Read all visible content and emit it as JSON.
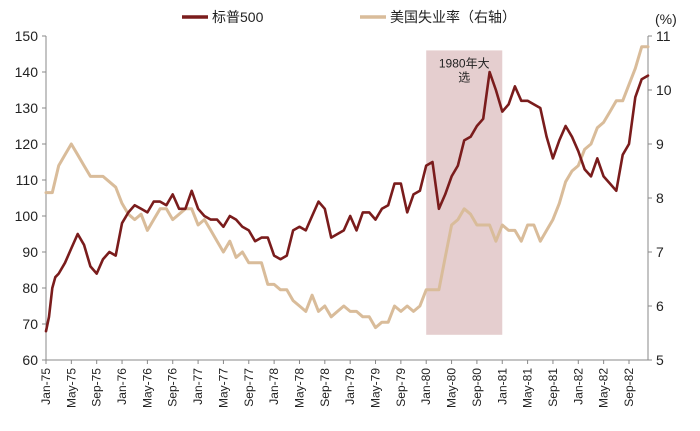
{
  "chart_data": {
    "type": "line",
    "title": "",
    "legend": {
      "placement": "top-center",
      "items": [
        {
          "name": "标普500",
          "color": "#7a1c1c"
        },
        {
          "name": "美国失业率（右轴）",
          "color": "#d9bc9a"
        }
      ]
    },
    "unit_right": "(%)",
    "left_axis": {
      "min": 60,
      "max": 150,
      "ticks": [
        60,
        70,
        80,
        90,
        100,
        110,
        120,
        130,
        140,
        150
      ]
    },
    "right_axis": {
      "min": 5,
      "max": 11,
      "ticks": [
        5,
        6,
        7,
        8,
        9,
        10,
        11
      ]
    },
    "x_axis": {
      "start": "1975-01",
      "end": "1982-12",
      "tick_labels": [
        "Jan-75",
        "May-75",
        "Sep-75",
        "Jan-76",
        "May-76",
        "Sep-76",
        "Jan-77",
        "May-77",
        "Sep-77",
        "Jan-78",
        "May-78",
        "Sep-78",
        "Jan-79",
        "May-79",
        "Sep-79",
        "Jan-80",
        "May-80",
        "Sep-80",
        "Jan-81",
        "May-81",
        "Sep-81",
        "Jan-82",
        "May-82",
        "Sep-82"
      ]
    },
    "annotation": {
      "text_line1": "1980年大",
      "text_line2": "选",
      "from": "1980-01",
      "to": "1981-01",
      "color": "#cfa5a8"
    },
    "series": [
      {
        "name": "标普500",
        "axis": "left",
        "color": "#7a1c1c",
        "points": [
          [
            "1975-01",
            68
          ],
          [
            "1975-01-15",
            72
          ],
          [
            "1975-02",
            80
          ],
          [
            "1975-02-15",
            83
          ],
          [
            "1975-03",
            84
          ],
          [
            "1975-04",
            87
          ],
          [
            "1975-05",
            91
          ],
          [
            "1975-06",
            95
          ],
          [
            "1975-07",
            92
          ],
          [
            "1975-08",
            86
          ],
          [
            "1975-09",
            84
          ],
          [
            "1975-10",
            88
          ],
          [
            "1975-11",
            90
          ],
          [
            "1975-12",
            89
          ],
          [
            "1976-01",
            98
          ],
          [
            "1976-02",
            101
          ],
          [
            "1976-03",
            103
          ],
          [
            "1976-04",
            102
          ],
          [
            "1976-05",
            101
          ],
          [
            "1976-06",
            104
          ],
          [
            "1976-07",
            104
          ],
          [
            "1976-08",
            103
          ],
          [
            "1976-09",
            106
          ],
          [
            "1976-10",
            102
          ],
          [
            "1976-11",
            102
          ],
          [
            "1976-12",
            107
          ],
          [
            "1977-01",
            102
          ],
          [
            "1977-02",
            100
          ],
          [
            "1977-03",
            99
          ],
          [
            "1977-04",
            99
          ],
          [
            "1977-05",
            97
          ],
          [
            "1977-06",
            100
          ],
          [
            "1977-07",
            99
          ],
          [
            "1977-08",
            97
          ],
          [
            "1977-09",
            96
          ],
          [
            "1977-10",
            93
          ],
          [
            "1977-11",
            94
          ],
          [
            "1977-12",
            94
          ],
          [
            "1978-01",
            89
          ],
          [
            "1978-02",
            88
          ],
          [
            "1978-03",
            89
          ],
          [
            "1978-04",
            96
          ],
          [
            "1978-05",
            97
          ],
          [
            "1978-06",
            96
          ],
          [
            "1978-07",
            100
          ],
          [
            "1978-08",
            104
          ],
          [
            "1978-09",
            102
          ],
          [
            "1978-10",
            94
          ],
          [
            "1978-11",
            95
          ],
          [
            "1978-12",
            96
          ],
          [
            "1979-01",
            100
          ],
          [
            "1979-02",
            96
          ],
          [
            "1979-03",
            101
          ],
          [
            "1979-04",
            101
          ],
          [
            "1979-05",
            99
          ],
          [
            "1979-06",
            102
          ],
          [
            "1979-07",
            103
          ],
          [
            "1979-08",
            109
          ],
          [
            "1979-09",
            109
          ],
          [
            "1979-10",
            101
          ],
          [
            "1979-11",
            106
          ],
          [
            "1979-12",
            107
          ],
          [
            "1980-01",
            114
          ],
          [
            "1980-02",
            115
          ],
          [
            "1980-03",
            102
          ],
          [
            "1980-04",
            106
          ],
          [
            "1980-05",
            111
          ],
          [
            "1980-06",
            114
          ],
          [
            "1980-07",
            121
          ],
          [
            "1980-08",
            122
          ],
          [
            "1980-09",
            125
          ],
          [
            "1980-10",
            127
          ],
          [
            "1980-11",
            140
          ],
          [
            "1980-12",
            135
          ],
          [
            "1981-01",
            129
          ],
          [
            "1981-02",
            131
          ],
          [
            "1981-03",
            136
          ],
          [
            "1981-04",
            132
          ],
          [
            "1981-05",
            132
          ],
          [
            "1981-06",
            131
          ],
          [
            "1981-07",
            130
          ],
          [
            "1981-08",
            122
          ],
          [
            "1981-09",
            116
          ],
          [
            "1981-10",
            121
          ],
          [
            "1981-11",
            125
          ],
          [
            "1981-12",
            122
          ],
          [
            "1982-01",
            118
          ],
          [
            "1982-02",
            113
          ],
          [
            "1982-03",
            111
          ],
          [
            "1982-04",
            116
          ],
          [
            "1982-05",
            111
          ],
          [
            "1982-06",
            109
          ],
          [
            "1982-07",
            107
          ],
          [
            "1982-08",
            117
          ],
          [
            "1982-09",
            120
          ],
          [
            "1982-10",
            133
          ],
          [
            "1982-11",
            138
          ],
          [
            "1982-12",
            139
          ]
        ]
      },
      {
        "name": "美国失业率（右轴）",
        "axis": "right",
        "color": "#d9bc9a",
        "points": [
          [
            "1975-01",
            8.1
          ],
          [
            "1975-02",
            8.1
          ],
          [
            "1975-03",
            8.6
          ],
          [
            "1975-04",
            8.8
          ],
          [
            "1975-05",
            9.0
          ],
          [
            "1975-06",
            8.8
          ],
          [
            "1975-07",
            8.6
          ],
          [
            "1975-08",
            8.4
          ],
          [
            "1975-09",
            8.4
          ],
          [
            "1975-10",
            8.4
          ],
          [
            "1975-11",
            8.3
          ],
          [
            "1975-12",
            8.2
          ],
          [
            "1976-01",
            7.9
          ],
          [
            "1976-02",
            7.7
          ],
          [
            "1976-03",
            7.6
          ],
          [
            "1976-04",
            7.7
          ],
          [
            "1976-05",
            7.4
          ],
          [
            "1976-06",
            7.6
          ],
          [
            "1976-07",
            7.8
          ],
          [
            "1976-08",
            7.8
          ],
          [
            "1976-09",
            7.6
          ],
          [
            "1976-10",
            7.7
          ],
          [
            "1976-11",
            7.8
          ],
          [
            "1976-12",
            7.8
          ],
          [
            "1977-01",
            7.5
          ],
          [
            "1977-02",
            7.6
          ],
          [
            "1977-03",
            7.4
          ],
          [
            "1977-04",
            7.2
          ],
          [
            "1977-05",
            7.0
          ],
          [
            "1977-06",
            7.2
          ],
          [
            "1977-07",
            6.9
          ],
          [
            "1977-08",
            7.0
          ],
          [
            "1977-09",
            6.8
          ],
          [
            "1977-10",
            6.8
          ],
          [
            "1977-11",
            6.8
          ],
          [
            "1977-12",
            6.4
          ],
          [
            "1978-01",
            6.4
          ],
          [
            "1978-02",
            6.3
          ],
          [
            "1978-03",
            6.3
          ],
          [
            "1978-04",
            6.1
          ],
          [
            "1978-05",
            6.0
          ],
          [
            "1978-06",
            5.9
          ],
          [
            "1978-07",
            6.2
          ],
          [
            "1978-08",
            5.9
          ],
          [
            "1978-09",
            6.0
          ],
          [
            "1978-10",
            5.8
          ],
          [
            "1978-11",
            5.9
          ],
          [
            "1978-12",
            6.0
          ],
          [
            "1979-01",
            5.9
          ],
          [
            "1979-02",
            5.9
          ],
          [
            "1979-03",
            5.8
          ],
          [
            "1979-04",
            5.8
          ],
          [
            "1979-05",
            5.6
          ],
          [
            "1979-06",
            5.7
          ],
          [
            "1979-07",
            5.7
          ],
          [
            "1979-08",
            6.0
          ],
          [
            "1979-09",
            5.9
          ],
          [
            "1979-10",
            6.0
          ],
          [
            "1979-11",
            5.9
          ],
          [
            "1979-12",
            6.0
          ],
          [
            "1980-01",
            6.3
          ],
          [
            "1980-02",
            6.3
          ],
          [
            "1980-03",
            6.3
          ],
          [
            "1980-04",
            6.9
          ],
          [
            "1980-05",
            7.5
          ],
          [
            "1980-06",
            7.6
          ],
          [
            "1980-07",
            7.8
          ],
          [
            "1980-08",
            7.7
          ],
          [
            "1980-09",
            7.5
          ],
          [
            "1980-10",
            7.5
          ],
          [
            "1980-11",
            7.5
          ],
          [
            "1980-12",
            7.2
          ],
          [
            "1981-01",
            7.5
          ],
          [
            "1981-02",
            7.4
          ],
          [
            "1981-03",
            7.4
          ],
          [
            "1981-04",
            7.2
          ],
          [
            "1981-05",
            7.5
          ],
          [
            "1981-06",
            7.5
          ],
          [
            "1981-07",
            7.2
          ],
          [
            "1981-08",
            7.4
          ],
          [
            "1981-09",
            7.6
          ],
          [
            "1981-10",
            7.9
          ],
          [
            "1981-11",
            8.3
          ],
          [
            "1981-12",
            8.5
          ],
          [
            "1982-01",
            8.6
          ],
          [
            "1982-02",
            8.9
          ],
          [
            "1982-03",
            9.0
          ],
          [
            "1982-04",
            9.3
          ],
          [
            "1982-05",
            9.4
          ],
          [
            "1982-06",
            9.6
          ],
          [
            "1982-07",
            9.8
          ],
          [
            "1982-08",
            9.8
          ],
          [
            "1982-09",
            10.1
          ],
          [
            "1982-10",
            10.4
          ],
          [
            "1982-11",
            10.8
          ],
          [
            "1982-12",
            10.8
          ]
        ]
      }
    ]
  }
}
